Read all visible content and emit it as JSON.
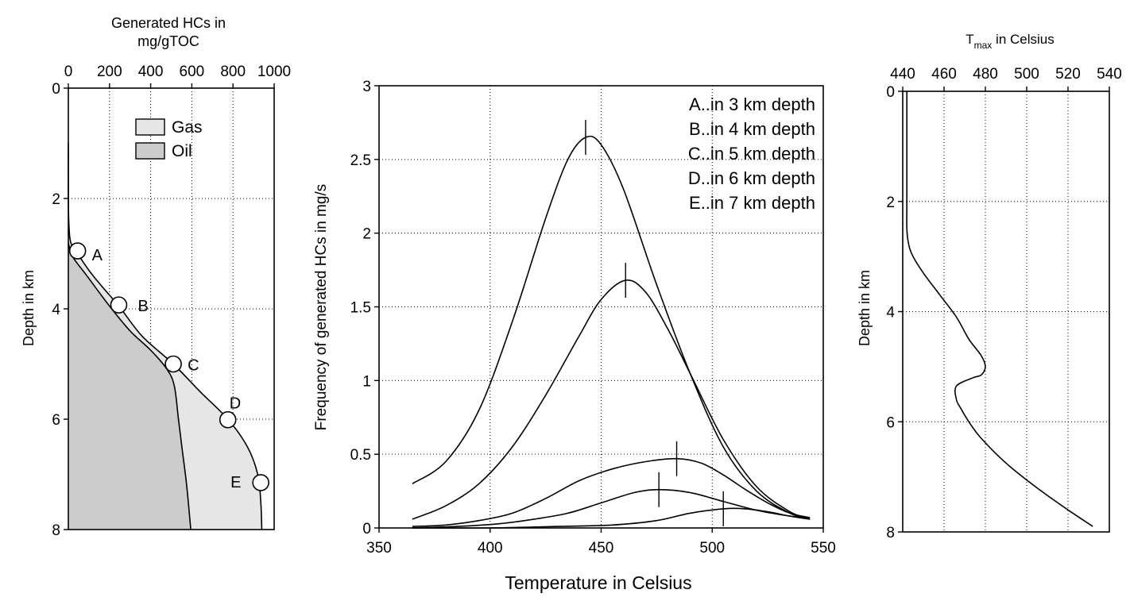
{
  "chart_data": [
    {
      "id": "hc-depth",
      "type": "area",
      "title": "Generated HCs in\nmg/gTOC",
      "xlabel": "",
      "ylabel": "Depth in km",
      "xlim": [
        0,
        1000
      ],
      "ylim": [
        0,
        8
      ],
      "x_ticks": [
        0,
        200,
        400,
        600,
        800,
        1000
      ],
      "y_ticks": [
        0,
        2,
        4,
        6,
        8
      ],
      "x_axis_position": "top",
      "y_inverted": true,
      "grid": true,
      "legend": [
        {
          "label": "Gas",
          "color": "#e6e6e6"
        },
        {
          "label": "Oil",
          "color": "#cccccc"
        }
      ],
      "total_curve": [
        [
          0,
          1.0
        ],
        [
          0,
          2.0
        ],
        [
          3,
          2.5
        ],
        [
          12,
          2.8
        ],
        [
          45,
          3.0
        ],
        [
          120,
          3.4
        ],
        [
          245,
          3.95
        ],
        [
          360,
          4.5
        ],
        [
          510,
          5.0
        ],
        [
          640,
          5.5
        ],
        [
          775,
          6.0
        ],
        [
          870,
          6.5
        ],
        [
          920,
          7.0
        ],
        [
          935,
          7.5
        ],
        [
          940,
          8.0
        ]
      ],
      "oil_curve": [
        [
          0,
          2.8
        ],
        [
          20,
          3.05
        ],
        [
          90,
          3.4
        ],
        [
          200,
          3.95
        ],
        [
          300,
          4.4
        ],
        [
          400,
          4.75
        ],
        [
          480,
          5.1
        ],
        [
          515,
          5.4
        ],
        [
          535,
          6.0
        ],
        [
          555,
          6.6
        ],
        [
          575,
          7.2
        ],
        [
          595,
          8.0
        ]
      ],
      "markers": [
        {
          "label": "A",
          "x": 45,
          "y": 2.95
        },
        {
          "label": "B",
          "x": 245,
          "y": 3.93
        },
        {
          "label": "C",
          "x": 510,
          "y": 5.0
        },
        {
          "label": "D",
          "x": 775,
          "y": 6.01
        },
        {
          "label": "E",
          "x": 935,
          "y": 7.15
        }
      ],
      "colors": {
        "gas": "#e6e6e6",
        "oil": "#cccccc"
      }
    },
    {
      "id": "frequency",
      "type": "line",
      "xlabel": "Temperature in Celsius",
      "ylabel": "Frequency of generated HCs in mg/s",
      "xlim": [
        350,
        550
      ],
      "ylim": [
        0,
        3
      ],
      "x_ticks": [
        350,
        400,
        450,
        500,
        550
      ],
      "y_ticks": [
        0,
        0.5,
        1,
        1.5,
        2,
        2.5,
        3
      ],
      "y_tick_labels": [
        "0",
        "0.5",
        "1",
        "1.5",
        "2",
        "2.5",
        "3"
      ],
      "grid": true,
      "legend_position": "top-right",
      "series": [
        {
          "name": "A..in 3 km depth",
          "peak_x": 443,
          "peak_y": 2.65,
          "x": [
            365,
            380,
            395,
            410,
            425,
            435,
            443,
            450,
            460,
            475,
            490,
            505,
            520,
            535,
            544
          ],
          "y": [
            0.3,
            0.45,
            0.8,
            1.4,
            2.1,
            2.5,
            2.65,
            2.6,
            2.3,
            1.65,
            1.05,
            0.55,
            0.25,
            0.1,
            0.06
          ]
        },
        {
          "name": "B..in 4 km depth",
          "peak_x": 461,
          "peak_y": 1.68,
          "x": [
            365,
            380,
            395,
            410,
            425,
            440,
            450,
            461,
            470,
            480,
            490,
            505,
            520,
            535,
            544
          ],
          "y": [
            0.06,
            0.15,
            0.3,
            0.55,
            0.9,
            1.3,
            1.55,
            1.68,
            1.6,
            1.35,
            1.05,
            0.6,
            0.28,
            0.11,
            0.06
          ]
        },
        {
          "name": "C..in 5 km depth",
          "peak_x": 484,
          "peak_y": 0.47,
          "x": [
            365,
            380,
            395,
            410,
            425,
            440,
            455,
            470,
            484,
            495,
            505,
            515,
            525,
            535,
            544
          ],
          "y": [
            0.01,
            0.02,
            0.05,
            0.1,
            0.2,
            0.32,
            0.4,
            0.45,
            0.47,
            0.44,
            0.36,
            0.26,
            0.17,
            0.1,
            0.07
          ]
        },
        {
          "name": "D..in 6 km depth",
          "peak_x": 476,
          "peak_y": 0.26,
          "x": [
            365,
            385,
            405,
            420,
            435,
            450,
            465,
            476,
            490,
            505,
            520,
            535,
            544
          ],
          "y": [
            0.0,
            0.01,
            0.03,
            0.06,
            0.1,
            0.17,
            0.24,
            0.26,
            0.24,
            0.18,
            0.12,
            0.08,
            0.06
          ]
        },
        {
          "name": "E..in 7 km depth",
          "peak_x": 505,
          "peak_y": 0.13,
          "x": [
            365,
            400,
            430,
            455,
            475,
            490,
            505,
            515,
            525,
            535,
            544
          ],
          "y": [
            0.0,
            0.0,
            0.01,
            0.02,
            0.05,
            0.1,
            0.13,
            0.13,
            0.11,
            0.08,
            0.06
          ]
        }
      ]
    },
    {
      "id": "tmax-depth",
      "type": "line",
      "title_main": "T",
      "title_sub": "max",
      "title_rest": " in Celsius",
      "xlabel": "",
      "ylabel": "Depth in km",
      "xlim": [
        440,
        540
      ],
      "ylim": [
        0,
        8
      ],
      "x_ticks": [
        440,
        460,
        480,
        500,
        520,
        540
      ],
      "y_ticks": [
        0,
        2,
        4,
        6,
        8
      ],
      "x_axis_position": "top",
      "y_inverted": true,
      "grid": true,
      "series": [
        {
          "name": "",
          "x": [
            442,
            442,
            442,
            442,
            443,
            445,
            450,
            458,
            466,
            472,
            478,
            480,
            478,
            474,
            466,
            466,
            468,
            472,
            478,
            490,
            505,
            520,
            532
          ],
          "y": [
            0,
            1.0,
            2.0,
            2.5,
            2.8,
            3.0,
            3.3,
            3.7,
            4.1,
            4.5,
            4.8,
            5.0,
            5.15,
            5.2,
            5.35,
            5.6,
            5.75,
            6.0,
            6.3,
            6.75,
            7.2,
            7.6,
            7.9
          ]
        }
      ]
    }
  ]
}
